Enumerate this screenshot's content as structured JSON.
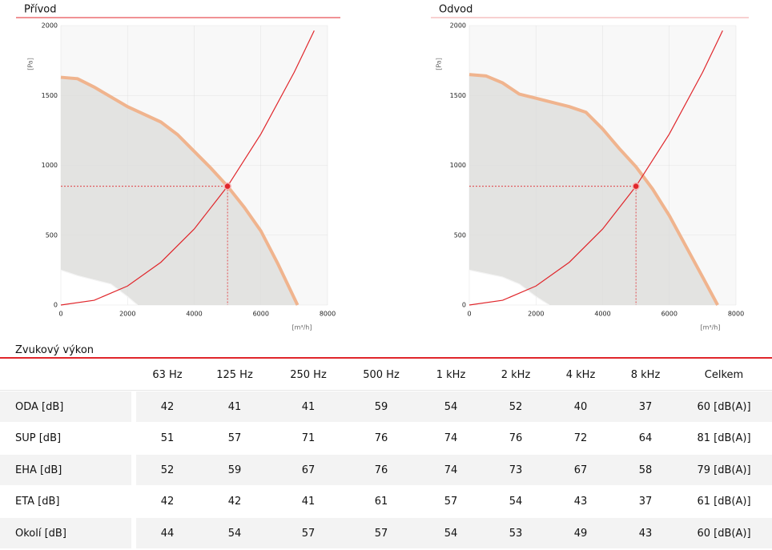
{
  "chart_data": [
    {
      "type": "line",
      "title": "Přívod",
      "ylabel": "[Pa]",
      "xlabel": "[m³/h]",
      "xlim": [
        0,
        8000
      ],
      "ylim": [
        0,
        2000
      ],
      "xticks": [
        0,
        2000,
        4000,
        6000,
        8000
      ],
      "yticks": [
        0,
        500,
        1000,
        1500,
        2000
      ],
      "grid": true,
      "series": [
        {
          "color": "#f0b48e",
          "fill": "#e3e3e1",
          "x": [
            0,
            500,
            1000,
            2000,
            3000,
            3500,
            4000,
            4500,
            5000,
            5500,
            6000,
            6500,
            7100
          ],
          "values": [
            1630,
            1620,
            1560,
            1420,
            1310,
            1220,
            1100,
            980,
            850,
            700,
            530,
            300,
            0
          ]
        },
        {
          "color": "#f4f4f4",
          "fill": "#ffffff",
          "x": [
            0,
            500,
            1500,
            2000,
            2300
          ],
          "values": [
            250,
            210,
            150,
            60,
            0
          ]
        },
        {
          "color": "#e0262b",
          "x": [
            0,
            1000,
            2000,
            3000,
            4000,
            5000,
            6000,
            7000,
            7600
          ],
          "values": [
            0,
            34,
            136,
            306,
            544,
            850,
            1224,
            1666,
            1964
          ]
        }
      ],
      "point": {
        "x": 5000,
        "y": 850,
        "color": "#e0262b"
      }
    },
    {
      "type": "line",
      "title": "Odvod",
      "ylabel": "[Pa]",
      "xlabel": "[m³/h]",
      "xlim": [
        0,
        8000
      ],
      "ylim": [
        0,
        2000
      ],
      "xticks": [
        0,
        2000,
        4000,
        6000,
        8000
      ],
      "yticks": [
        0,
        500,
        1000,
        1500,
        2000
      ],
      "grid": true,
      "series": [
        {
          "color": "#f0b48e",
          "fill": "#e3e3e1",
          "x": [
            0,
            500,
            1000,
            1500,
            2000,
            3000,
            3500,
            4000,
            4500,
            5000,
            5500,
            6000,
            6500,
            7000,
            7450
          ],
          "values": [
            1650,
            1640,
            1590,
            1510,
            1480,
            1420,
            1380,
            1260,
            1120,
            990,
            830,
            640,
            420,
            200,
            0
          ]
        },
        {
          "color": "#f4f4f4",
          "fill": "#ffffff",
          "x": [
            0,
            1000,
            1500,
            2000,
            2400
          ],
          "values": [
            250,
            200,
            150,
            60,
            0
          ]
        },
        {
          "color": "#e0262b",
          "x": [
            0,
            1000,
            2000,
            3000,
            4000,
            5000,
            6000,
            7000,
            7600
          ],
          "values": [
            0,
            34,
            136,
            306,
            544,
            850,
            1224,
            1666,
            1964
          ]
        }
      ],
      "point": {
        "x": 5000,
        "y": 850,
        "color": "#e0262b"
      }
    }
  ],
  "sound": {
    "title": "Zvukový výkon",
    "columns": [
      "63 Hz",
      "125 Hz",
      "250 Hz",
      "500 Hz",
      "1 kHz",
      "2 kHz",
      "4 kHz",
      "8 kHz",
      "Celkem"
    ],
    "rows": [
      {
        "label": "ODA [dB]",
        "cells": [
          "42",
          "41",
          "41",
          "59",
          "54",
          "52",
          "40",
          "37",
          "60 [dB(A)]"
        ]
      },
      {
        "label": "SUP [dB]",
        "cells": [
          "51",
          "57",
          "71",
          "76",
          "74",
          "76",
          "72",
          "64",
          "81 [dB(A)]"
        ]
      },
      {
        "label": "EHA [dB]",
        "cells": [
          "52",
          "59",
          "67",
          "76",
          "74",
          "73",
          "67",
          "58",
          "79 [dB(A)]"
        ]
      },
      {
        "label": "ETA [dB]",
        "cells": [
          "42",
          "42",
          "41",
          "61",
          "57",
          "54",
          "43",
          "37",
          "61 [dB(A)]"
        ]
      },
      {
        "label": "Okolí [dB]",
        "cells": [
          "44",
          "54",
          "57",
          "57",
          "54",
          "53",
          "49",
          "43",
          "60 [dB(A)]"
        ]
      }
    ]
  }
}
